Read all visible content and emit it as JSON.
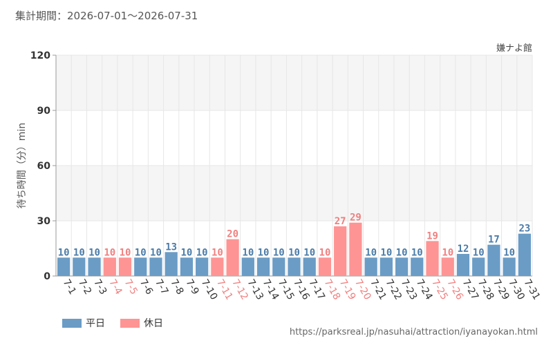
{
  "header": {
    "period": "集計期間：2026-07-01～2026-07-31"
  },
  "source_url": "https://parksreal.jp/nasuhai/attraction/iyanayokan.html",
  "legend": {
    "weekday": "平日",
    "holiday": "休日"
  },
  "colors": {
    "weekday": "#6a9cc6",
    "holiday": "#fe9494",
    "weekday_label": "#4a7ba8",
    "holiday_label": "#f07f7f",
    "grid": "#e6e6e6",
    "band": "#f5f5f5"
  },
  "chart_data": {
    "type": "bar",
    "title": "嫌ナよ館",
    "ylabel": "待ち時間（分）min",
    "xlabel": "",
    "ylim": [
      0,
      120
    ],
    "yticks": [
      0,
      30,
      60,
      90,
      120
    ],
    "grid": true,
    "legend_position": "bottom-left",
    "categories": [
      "7-1",
      "7-2",
      "7-3",
      "7-4",
      "7-5",
      "7-6",
      "7-7",
      "7-8",
      "7-9",
      "7-10",
      "7-11",
      "7-12",
      "7-13",
      "7-14",
      "7-15",
      "7-16",
      "7-17",
      "7-18",
      "7-19",
      "7-20",
      "7-21",
      "7-22",
      "7-23",
      "7-24",
      "7-25",
      "7-26",
      "7-27",
      "7-28",
      "7-29",
      "7-30",
      "7-31"
    ],
    "values": [
      10,
      10,
      10,
      10,
      10,
      10,
      10,
      13,
      10,
      10,
      10,
      20,
      10,
      10,
      10,
      10,
      10,
      10,
      27,
      29,
      10,
      10,
      10,
      10,
      19,
      10,
      12,
      10,
      17,
      10,
      23
    ],
    "day_type": [
      "weekday",
      "weekday",
      "weekday",
      "holiday",
      "holiday",
      "weekday",
      "weekday",
      "weekday",
      "weekday",
      "weekday",
      "holiday",
      "holiday",
      "weekday",
      "weekday",
      "weekday",
      "weekday",
      "weekday",
      "holiday",
      "holiday",
      "holiday",
      "weekday",
      "weekday",
      "weekday",
      "weekday",
      "holiday",
      "holiday",
      "weekday",
      "weekday",
      "weekday",
      "weekday",
      "weekday"
    ]
  }
}
